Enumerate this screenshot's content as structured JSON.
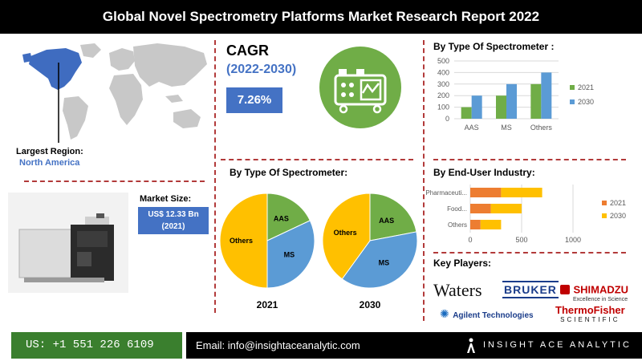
{
  "title": "Global Novel Spectrometry Platforms Market Research Report 2022",
  "region": {
    "label": "Largest Region:",
    "value": "North America"
  },
  "cagr": {
    "title": "CAGR",
    "years": "(2022-2030)",
    "value": "7.26%"
  },
  "market_size": {
    "label": "Market Size:",
    "value_line1": "US$ 12.33 Bn",
    "value_line2": "(2021)"
  },
  "pie_section": {
    "title": "By Type Of Spectrometer:"
  },
  "bar_section": {
    "title": "By Type Of Spectrometer :"
  },
  "enduser_section": {
    "title": "By End-User Industry:"
  },
  "key_players": {
    "title": "Key Players:",
    "players": [
      "Waters",
      "BRUKER",
      "SHIMADZU",
      "Excellence in Science",
      "Agilent Technologies",
      "ThermoFisher",
      "SCIENTIFIC"
    ]
  },
  "footer": {
    "phone": "US: +1 551 226 6109",
    "email": "Email: info@insightaceanalytic.com",
    "brand": "INSIGHT ACE ANALYTIC"
  },
  "colors": {
    "green": "#70ad47",
    "blue": "#5b9bd5",
    "orange": "#ed7d31",
    "yellow": "#ffc000",
    "accent": "#4472c4"
  },
  "chart_data": [
    {
      "type": "bar",
      "title": "By Type Of Spectrometer :",
      "categories": [
        "AAS",
        "MS",
        "Others"
      ],
      "series": [
        {
          "name": "2021",
          "values": [
            100,
            200,
            300
          ]
        },
        {
          "name": "2030",
          "values": [
            200,
            300,
            400
          ]
        }
      ],
      "ylim": [
        0,
        500
      ],
      "yticks": [
        0,
        100,
        200,
        300,
        400,
        500
      ],
      "grid": true,
      "legend": "right"
    },
    {
      "type": "pie",
      "title": "2021",
      "slices": [
        {
          "label": "AAS",
          "value": 18
        },
        {
          "label": "MS",
          "value": 32
        },
        {
          "label": "Others",
          "value": 50
        }
      ]
    },
    {
      "type": "pie",
      "title": "2030",
      "slices": [
        {
          "label": "AAS",
          "value": 22
        },
        {
          "label": "MS",
          "value": 38
        },
        {
          "label": "Others",
          "value": 40
        }
      ]
    },
    {
      "type": "bar",
      "orientation": "horizontal",
      "stacked": true,
      "title": "By End-User Industry:",
      "categories": [
        "Pharmaceuti...",
        "Food...",
        "Others"
      ],
      "series": [
        {
          "name": "2021",
          "values": [
            300,
            200,
            100
          ]
        },
        {
          "name": "2030",
          "values": [
            400,
            300,
            200
          ]
        }
      ],
      "xlim": [
        0,
        1000
      ],
      "xticks": [
        0,
        500,
        1000
      ],
      "legend": "right"
    }
  ]
}
